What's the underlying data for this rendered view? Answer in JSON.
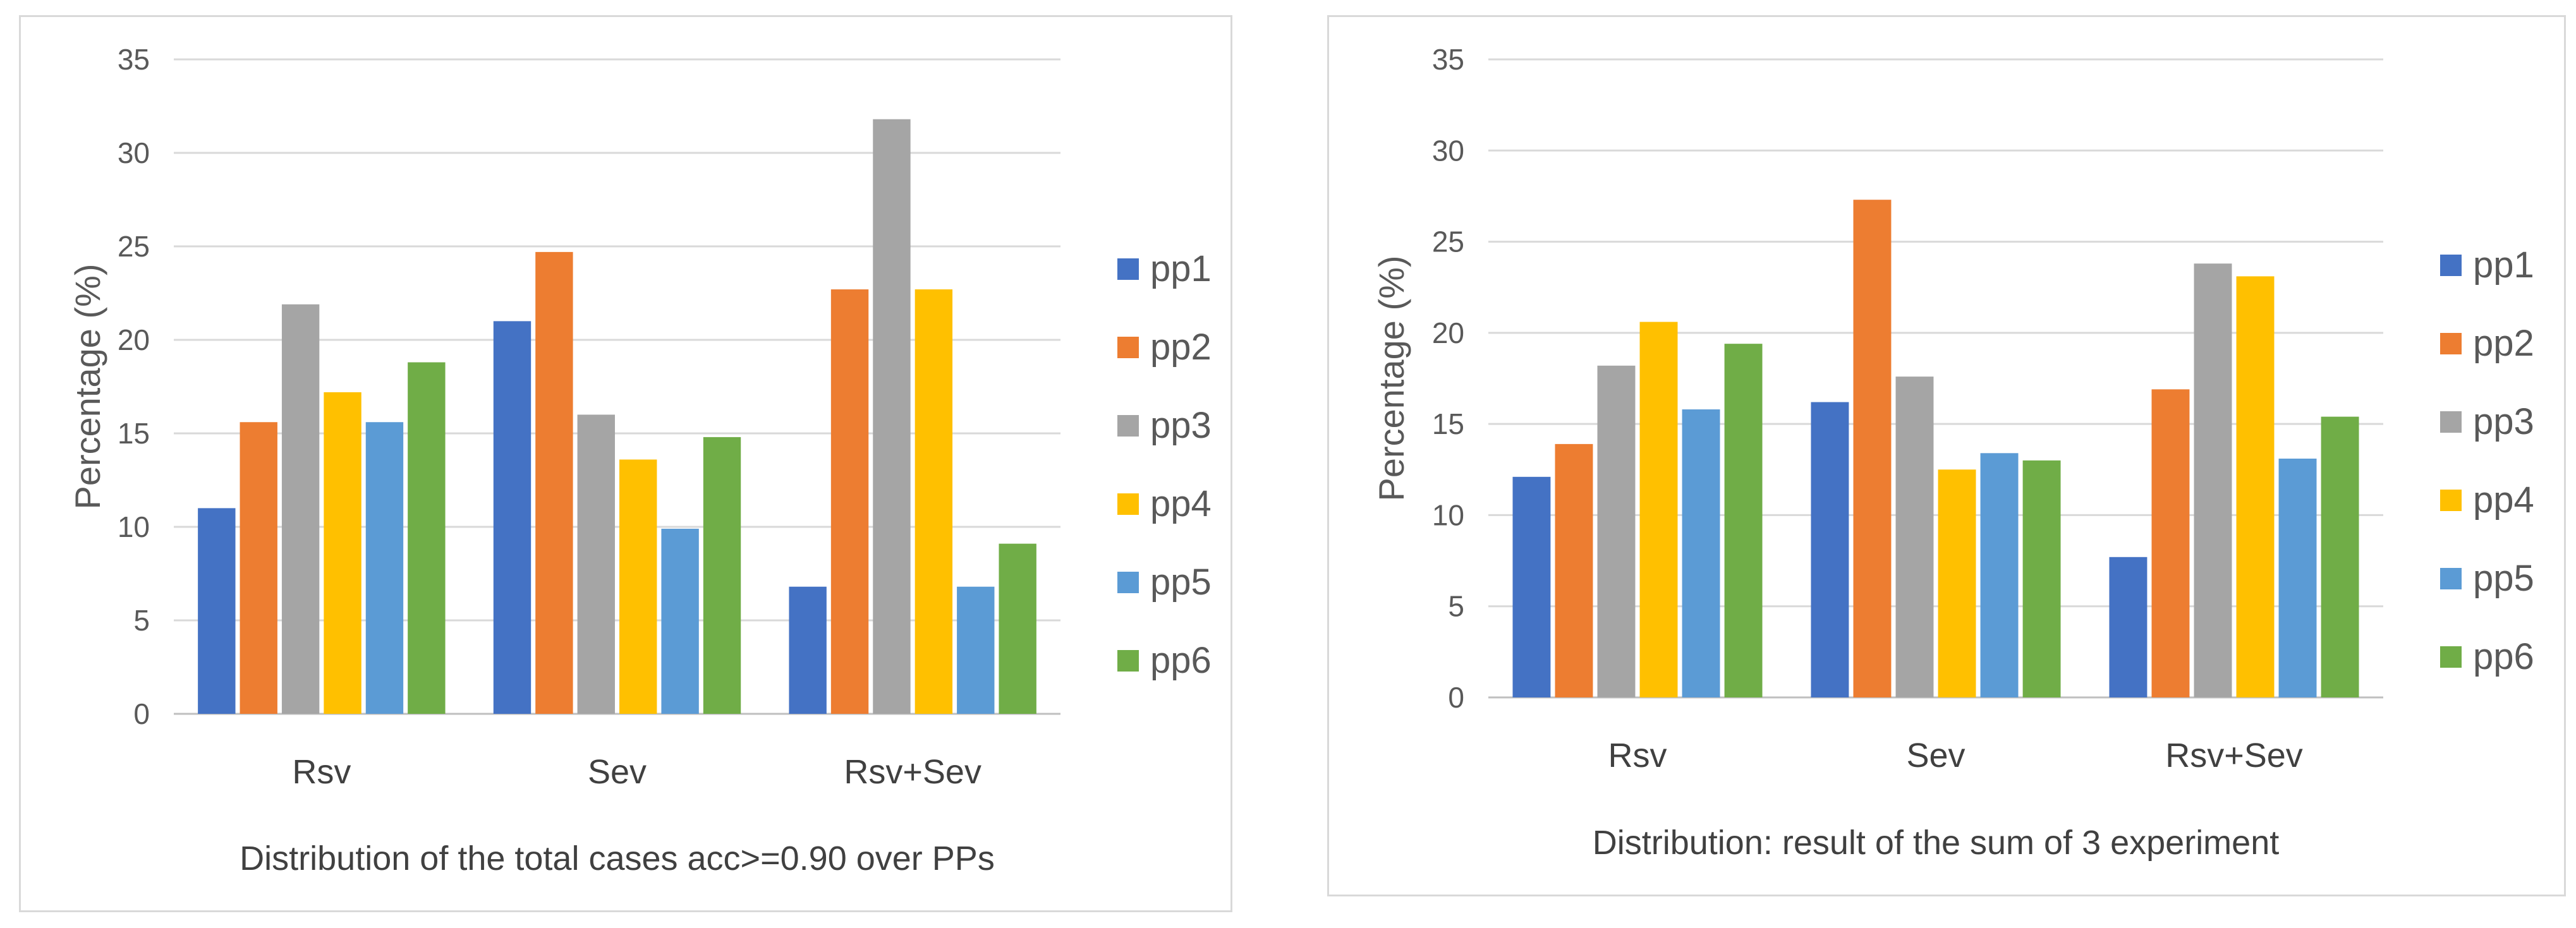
{
  "chart_data": [
    {
      "type": "bar",
      "caption": "Distribution of the total cases acc>=0.90 over PPs",
      "ylabel": "Percentage (%)",
      "xlabel": "",
      "ylim": [
        0,
        35
      ],
      "yticks": [
        "0",
        "5",
        "10",
        "15",
        "20",
        "25",
        "30",
        "35"
      ],
      "categories": [
        "Rsv",
        "Sev",
        "Rsv+Sev"
      ],
      "legend_position": "right",
      "grid": true,
      "series": [
        {
          "name": "pp1",
          "color": "#4472C4",
          "values": [
            11.0,
            21.0,
            6.8
          ]
        },
        {
          "name": "pp2",
          "color": "#ED7D31",
          "values": [
            15.6,
            24.7,
            22.7
          ]
        },
        {
          "name": "pp3",
          "color": "#A5A5A5",
          "values": [
            21.9,
            16.0,
            31.8
          ]
        },
        {
          "name": "pp4",
          "color": "#FFC000",
          "values": [
            17.2,
            13.6,
            22.7
          ]
        },
        {
          "name": "pp5",
          "color": "#5B9BD5",
          "values": [
            15.6,
            9.9,
            6.8
          ]
        },
        {
          "name": "pp6",
          "color": "#70AD47",
          "values": [
            18.8,
            14.8,
            9.1
          ]
        }
      ]
    },
    {
      "type": "bar",
      "caption": "Distribution: result of the sum of 3 experiment",
      "ylabel": "Percentage (%)",
      "xlabel": "",
      "ylim": [
        0,
        35
      ],
      "yticks": [
        "0",
        "5",
        "10",
        "15",
        "20",
        "25",
        "30",
        "35"
      ],
      "categories": [
        "Rsv",
        "Sev",
        "Rsv+Sev"
      ],
      "legend_position": "right",
      "grid": true,
      "series": [
        {
          "name": "pp1",
          "color": "#4472C4",
          "values": [
            12.1,
            16.2,
            7.7
          ]
        },
        {
          "name": "pp2",
          "color": "#ED7D31",
          "values": [
            13.9,
            27.3,
            16.9
          ]
        },
        {
          "name": "pp3",
          "color": "#A5A5A5",
          "values": [
            18.2,
            17.6,
            23.8
          ]
        },
        {
          "name": "pp4",
          "color": "#FFC000",
          "values": [
            20.6,
            12.5,
            23.1
          ]
        },
        {
          "name": "pp5",
          "color": "#5B9BD5",
          "values": [
            15.8,
            13.4,
            13.1
          ]
        },
        {
          "name": "pp6",
          "color": "#70AD47",
          "values": [
            19.4,
            13.0,
            15.4
          ]
        }
      ]
    }
  ]
}
